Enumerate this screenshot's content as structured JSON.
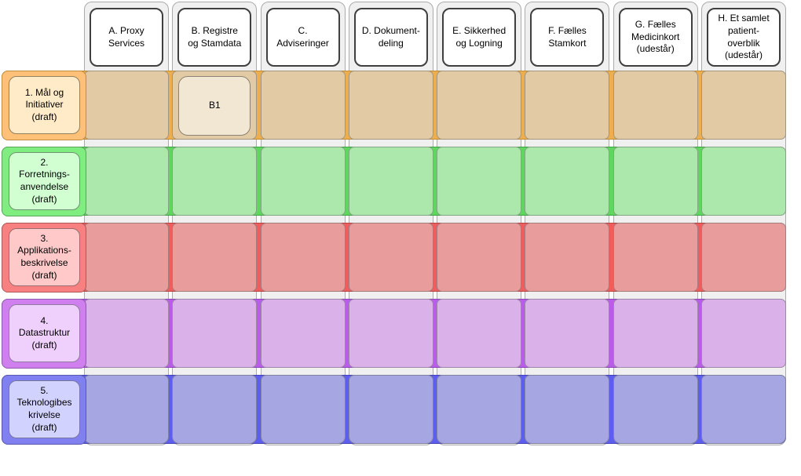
{
  "diagram": {
    "columns": [
      {
        "id": "A",
        "label": "A. Proxy\nServices"
      },
      {
        "id": "B",
        "label": "B. Registre\nog Stamdata"
      },
      {
        "id": "C",
        "label": "C.\nAdviseringer"
      },
      {
        "id": "D",
        "label": "D. Dokument-\ndeling"
      },
      {
        "id": "E",
        "label": "E. Sikkerhed\nog Logning"
      },
      {
        "id": "F",
        "label": "F. Fælles\nStamkort"
      },
      {
        "id": "G",
        "label": "G. Fælles\nMedicinkort\n(udestår)"
      },
      {
        "id": "H",
        "label": "H. Et samlet\npatient-\noverblik\n(udestår)"
      }
    ],
    "rows": [
      {
        "id": "1",
        "label": "1. Mål og\nInitiativer\n(draft)",
        "bandFill": "#EDAE50",
        "bandStroke": "#C08A33",
        "cellFill": "#E2CBA4",
        "headerFill": "#FFC077",
        "headerStroke": "#BE8C3C",
        "labelFill": "#FFEBC8",
        "labelStroke": "#93805D"
      },
      {
        "id": "2",
        "label": "2.\nForretnings-\nanvendelse\n(draft)",
        "bandFill": "#5FD75F",
        "bandStroke": "#3FA03F",
        "cellFill": "#ACE8AC",
        "headerFill": "#7FED7F",
        "headerStroke": "#58A758",
        "labelFill": "#D1FFD1",
        "labelStroke": "#709470"
      },
      {
        "id": "3",
        "label": "3.\nApplikations-\nbeskrivelse\n(draft)",
        "bandFill": "#F05D5D",
        "bandStroke": "#B34242",
        "cellFill": "#E89C9C",
        "headerFill": "#F98080",
        "headerStroke": "#AE5858",
        "labelFill": "#FFC9C9",
        "labelStroke": "#9D6C6C"
      },
      {
        "id": "4",
        "label": "4.\nDatastruktur\n(draft)",
        "bandFill": "#B95CEA",
        "bandStroke": "#8A42B3",
        "cellFill": "#DAB1E9",
        "headerFill": "#CF7FEE",
        "headerStroke": "#9058AE",
        "labelFill": "#EFD0FC",
        "labelStroke": "#917CA0"
      },
      {
        "id": "5",
        "label": "5.\nTeknologibes\nkrivelse\n(draft)",
        "bandFill": "#5D5DF0",
        "bandStroke": "#4242B3",
        "cellFill": "#A6A6E3",
        "headerFill": "#8080F1",
        "headerStroke": "#5858AE",
        "labelFill": "#D2D2FF",
        "labelStroke": "#77779E"
      }
    ],
    "nodes": [
      {
        "row": "1",
        "col": "B",
        "label": "B1",
        "fill": "#F2E7D3",
        "stroke": "#8B8274"
      }
    ],
    "styles": {
      "background": "#FFFFFF",
      "columnFill": "#F0F0F0",
      "columnStroke": "#ABABAB",
      "columnHeaderFill": "#FFFFFF",
      "columnHeaderStroke": "#3F3F3F",
      "cellBorder": "rgba(85,85,85,0.45)",
      "textColor": "#000000"
    }
  }
}
